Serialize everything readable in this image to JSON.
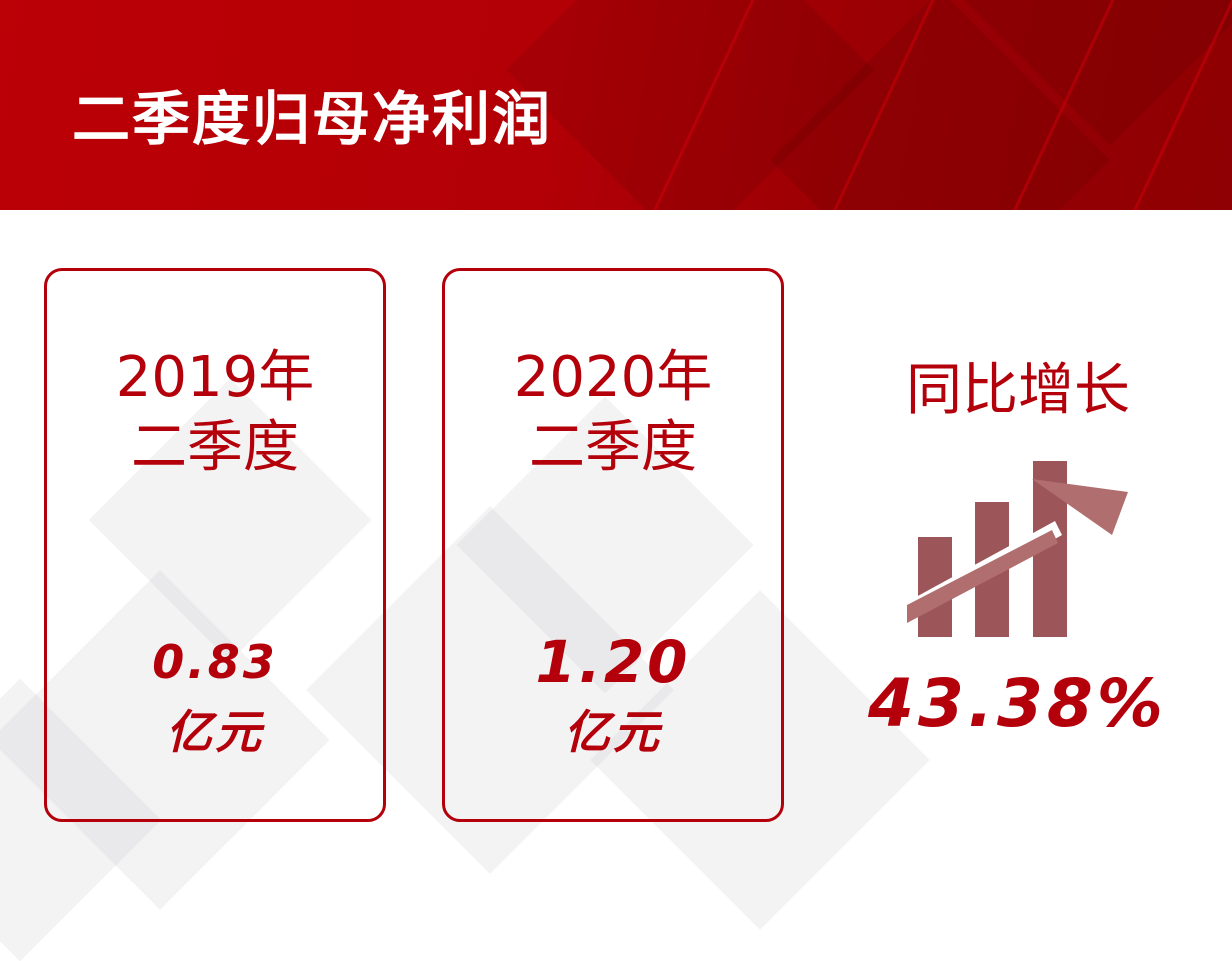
{
  "header": {
    "title": "二季度归母净利润"
  },
  "cards": [
    {
      "period_line1": "2019年",
      "period_line2": "二季度",
      "value": "0.83",
      "unit": "亿元"
    },
    {
      "period_line1": "2020年",
      "period_line2": "二季度",
      "value": "1.20",
      "unit": "亿元"
    }
  ],
  "growth": {
    "label": "同比增长",
    "value": "43.38%",
    "icon": "bar-chart-up-arrow-icon"
  },
  "colors": {
    "brand_red": "#b3000a",
    "icon_bar": "#9c5558",
    "icon_arrow": "#b06e6e"
  }
}
